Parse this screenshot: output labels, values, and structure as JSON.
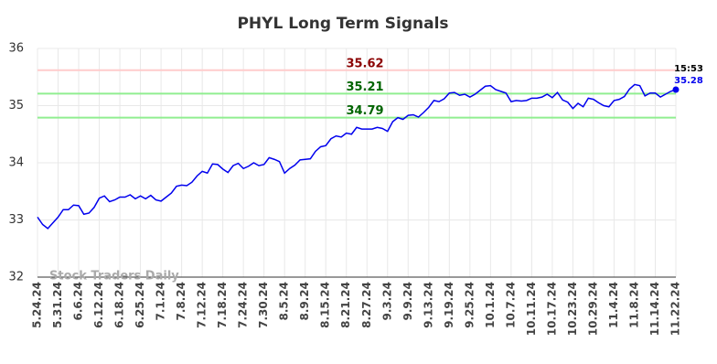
{
  "chart_data": {
    "type": "line",
    "title": "PHYL Long Term Signals",
    "watermark": "Stock Traders Daily",
    "categories": [
      "5.24.24",
      null,
      null,
      null,
      "5.31.24",
      null,
      null,
      null,
      "6.6.24",
      null,
      null,
      null,
      "6.12.24",
      null,
      null,
      null,
      "6.18.24",
      null,
      null,
      null,
      "6.25.24",
      null,
      null,
      null,
      "7.1.24",
      null,
      null,
      null,
      "7.8.24",
      null,
      null,
      null,
      "7.12.24",
      null,
      null,
      null,
      "7.18.24",
      null,
      null,
      null,
      "7.24.24",
      null,
      null,
      null,
      "7.30.24",
      null,
      null,
      null,
      "8.5.24",
      null,
      null,
      null,
      "8.9.24",
      null,
      null,
      null,
      "8.15.24",
      null,
      null,
      null,
      "8.21.24",
      null,
      null,
      null,
      "8.27.24",
      null,
      null,
      null,
      "9.3.24",
      null,
      null,
      null,
      "9.9.24",
      null,
      null,
      null,
      "9.13.24",
      null,
      null,
      null,
      "9.19.24",
      null,
      null,
      null,
      "9.25.24",
      null,
      null,
      null,
      "10.1.24",
      null,
      null,
      null,
      "10.7.24",
      null,
      null,
      null,
      "10.11.24",
      null,
      null,
      null,
      "10.17.24",
      null,
      null,
      null,
      "10.23.24",
      null,
      null,
      null,
      "10.29.24",
      null,
      null,
      null,
      "11.4.24",
      null,
      null,
      null,
      "11.8.24",
      null,
      null,
      null,
      "11.14.24",
      null,
      null,
      null,
      "11.22.24"
    ],
    "values": [
      33.05,
      32.92,
      32.85,
      32.95,
      33.05,
      33.18,
      33.18,
      33.26,
      33.25,
      33.1,
      33.12,
      33.22,
      33.38,
      33.42,
      33.32,
      33.35,
      33.4,
      33.4,
      33.44,
      33.37,
      33.42,
      33.37,
      33.43,
      33.35,
      33.33,
      33.4,
      33.47,
      33.59,
      33.61,
      33.6,
      33.66,
      33.77,
      33.85,
      33.82,
      33.98,
      33.97,
      33.89,
      33.83,
      33.95,
      33.99,
      33.9,
      33.94,
      34.0,
      33.95,
      33.97,
      34.09,
      34.06,
      34.02,
      33.82,
      33.9,
      33.96,
      34.05,
      34.06,
      34.07,
      34.2,
      34.28,
      34.3,
      34.42,
      34.47,
      34.45,
      34.52,
      34.5,
      34.62,
      34.59,
      34.59,
      34.59,
      34.62,
      34.6,
      34.55,
      34.72,
      34.79,
      34.76,
      34.83,
      34.84,
      34.8,
      34.88,
      34.97,
      35.09,
      35.07,
      35.12,
      35.22,
      35.23,
      35.18,
      35.2,
      35.15,
      35.2,
      35.27,
      35.34,
      35.35,
      35.28,
      35.25,
      35.22,
      35.07,
      35.09,
      35.08,
      35.09,
      35.13,
      35.13,
      35.15,
      35.2,
      35.14,
      35.23,
      35.1,
      35.06,
      34.95,
      35.04,
      34.98,
      35.13,
      35.11,
      35.05,
      35.0,
      34.98,
      35.09,
      35.11,
      35.16,
      35.29,
      35.37,
      35.35,
      35.17,
      35.22,
      35.22,
      35.15,
      35.2,
      35.25,
      35.28
    ],
    "color": "#0000ee",
    "last_time": "15:53",
    "hlines": [
      {
        "value": 35.62,
        "color": "#ffcccc",
        "label_color": "#8b0000"
      },
      {
        "value": 35.21,
        "color": "#90ee90",
        "label_color": "#006400"
      },
      {
        "value": 34.79,
        "color": "#90ee90",
        "label_color": "#006400"
      }
    ],
    "ylim": [
      32,
      36
    ],
    "yticks": [
      32,
      33,
      34,
      35,
      36
    ],
    "grid": true
  }
}
